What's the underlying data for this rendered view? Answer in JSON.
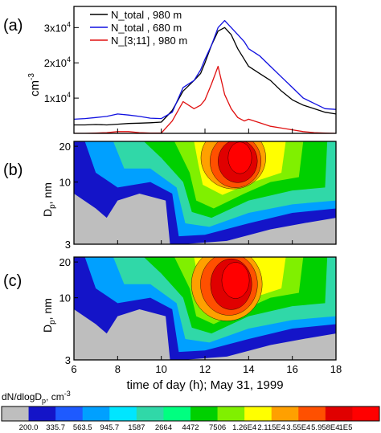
{
  "chart_data": [
    {
      "panel_label": "(a)",
      "type": "line",
      "x": [
        6,
        6.5,
        7,
        7.5,
        8,
        8.5,
        9,
        9.5,
        10,
        10.5,
        11,
        11.5,
        11.8,
        12,
        12.3,
        12.6,
        12.9,
        13.2,
        13.5,
        13.8,
        14,
        14.5,
        15,
        15.5,
        16,
        16.5,
        17,
        17.5,
        18
      ],
      "series": [
        {
          "name": "N_total , 980 m",
          "color": "#000000",
          "values": [
            2400,
            2400,
            2500,
            2400,
            2600,
            2800,
            2900,
            3000,
            3200,
            6500,
            12000,
            15000,
            17000,
            20000,
            25000,
            29000,
            30000,
            28000,
            24000,
            21000,
            19000,
            17000,
            15000,
            12000,
            9500,
            8000,
            7000,
            6000,
            5500
          ]
        },
        {
          "name": "N_total , 680 m",
          "color": "#1010e0",
          "values": [
            4000,
            4200,
            4500,
            4800,
            5500,
            5200,
            4800,
            4300,
            4200,
            6000,
            13000,
            15000,
            18000,
            21000,
            25000,
            30000,
            32000,
            30000,
            28000,
            26000,
            24000,
            22000,
            19000,
            16000,
            13000,
            10000,
            8500,
            7000,
            6800
          ]
        },
        {
          "name": "N_[3;11] , 980 m",
          "color": "#e01010",
          "values": [
            0,
            0,
            100,
            200,
            500,
            500,
            200,
            100,
            100,
            3500,
            9000,
            7000,
            8000,
            9500,
            14000,
            19000,
            11000,
            7000,
            4500,
            3500,
            4000,
            3000,
            2000,
            1500,
            1000,
            500,
            200,
            100,
            0
          ]
        }
      ],
      "ylabel": "cm",
      "ylabel_exp": "-3",
      "y_ticks": [
        {
          "value": 10000,
          "mant": "1x10",
          "exp": "4"
        },
        {
          "value": 20000,
          "mant": "2x10",
          "exp": "4"
        },
        {
          "value": 30000,
          "mant": "3x10",
          "exp": "4"
        }
      ],
      "ylim": [
        0,
        36000
      ],
      "xlim": [
        6,
        18
      ],
      "legend_position": "top-left"
    },
    {
      "panel_label": "(b)",
      "type": "heatmap",
      "ylabel_main": "D",
      "ylabel_sub": "p",
      "ylabel_unit": ", nm",
      "y_scale": "log",
      "y_ticks": [
        "3",
        "10",
        "20"
      ],
      "ylim": [
        3,
        22
      ],
      "xlim": [
        6,
        18
      ],
      "blobs": [
        {
          "x": 13.3,
          "y": 16,
          "rx": 3.3,
          "ry": 0.55,
          "level": 10
        },
        {
          "x": 13.4,
          "y": 15,
          "rx": 2.6,
          "ry": 0.47,
          "level": 11
        },
        {
          "x": 13.5,
          "y": 15,
          "rx": 2.0,
          "ry": 0.38,
          "level": 12
        },
        {
          "x": 13.6,
          "y": 16,
          "rx": 1.2,
          "ry": 0.28,
          "level": 13
        }
      ]
    },
    {
      "panel_label": "(c)",
      "type": "heatmap",
      "ylabel_main": "D",
      "ylabel_sub": "p",
      "ylabel_unit": ", nm",
      "y_scale": "log",
      "y_ticks": [
        "3",
        "10",
        "20"
      ],
      "ylim": [
        3,
        22
      ],
      "xlim": [
        6,
        18
      ],
      "x_ticks": [
        "6",
        "8",
        "10",
        "12",
        "14",
        "16",
        "18"
      ],
      "xlabel": "time of day (h); May 31, 1999",
      "blobs": [
        {
          "x": 13.0,
          "y": 13,
          "rx": 3.6,
          "ry": 0.65,
          "level": 10
        },
        {
          "x": 13.1,
          "y": 13,
          "rx": 2.9,
          "ry": 0.55,
          "level": 11
        },
        {
          "x": 13.2,
          "y": 13,
          "rx": 2.1,
          "ry": 0.45,
          "level": 12
        },
        {
          "x": 13.4,
          "y": 14,
          "rx": 1.4,
          "ry": 0.32,
          "level": 13
        }
      ]
    }
  ],
  "colorbar": {
    "title": "dN/dlogD",
    "title_sub": "p",
    "title_unit": ", cm",
    "title_exp": "-3",
    "levels": [
      "200.0",
      "335.7",
      "563.5",
      "945.7",
      "1587",
      "2664",
      "4472",
      "7506",
      "1.26E4",
      "2.115E4",
      "3.55E4",
      "5.958E4",
      "1E5"
    ],
    "colors": [
      "#bebebe",
      "#1414c8",
      "#1e5aff",
      "#00a0ff",
      "#00e6ff",
      "#30d8a8",
      "#00ff80",
      "#00d000",
      "#80f000",
      "#ffff00",
      "#ffa000",
      "#ff5000",
      "#e00000",
      "#ff0000"
    ]
  }
}
